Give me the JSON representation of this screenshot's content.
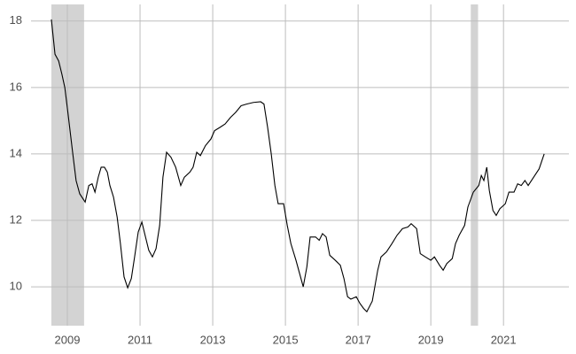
{
  "chart_data": {
    "type": "line",
    "x": [
      2008.56,
      2008.66,
      2008.76,
      2008.85,
      2008.93,
      2009.02,
      2009.15,
      2009.24,
      2009.34,
      2009.49,
      2009.59,
      2009.68,
      2009.76,
      2009.85,
      2009.93,
      2010.02,
      2010.1,
      2010.17,
      2010.27,
      2010.37,
      2010.46,
      2010.56,
      2010.66,
      2010.76,
      2010.85,
      2010.95,
      2011.05,
      2011.15,
      2011.24,
      2011.34,
      2011.44,
      2011.54,
      2011.63,
      2011.73,
      2011.85,
      2011.98,
      2012.12,
      2012.22,
      2012.37,
      2012.46,
      2012.56,
      2012.66,
      2012.8,
      2012.95,
      2013.05,
      2013.2,
      2013.34,
      2013.49,
      2013.63,
      2013.78,
      2013.93,
      2014.12,
      2014.32,
      2014.41,
      2014.51,
      2014.61,
      2014.71,
      2014.8,
      2014.95,
      2015.05,
      2015.15,
      2015.29,
      2015.39,
      2015.49,
      2015.59,
      2015.68,
      2015.83,
      2015.93,
      2016.02,
      2016.12,
      2016.22,
      2016.37,
      2016.51,
      2016.61,
      2016.71,
      2016.8,
      2016.95,
      2017.05,
      2017.15,
      2017.24,
      2017.39,
      2017.54,
      2017.63,
      2017.78,
      2017.93,
      2018.07,
      2018.22,
      2018.37,
      2018.46,
      2018.61,
      2018.71,
      2018.85,
      2019.0,
      2019.1,
      2019.24,
      2019.34,
      2019.44,
      2019.59,
      2019.68,
      2019.78,
      2019.93,
      2020.02,
      2020.17,
      2020.32,
      2020.39,
      2020.46,
      2020.54,
      2020.61,
      2020.71,
      2020.8,
      2020.9,
      2021.05,
      2021.15,
      2021.29,
      2021.39,
      2021.49,
      2021.59,
      2021.68,
      2021.83,
      2021.98,
      2022.12
    ],
    "values": [
      18.05,
      17.0,
      16.8,
      16.4,
      16.0,
      15.2,
      14.0,
      13.2,
      12.8,
      12.55,
      13.05,
      13.1,
      12.85,
      13.3,
      13.6,
      13.6,
      13.45,
      13.05,
      12.7,
      12.1,
      11.3,
      10.3,
      9.97,
      10.25,
      10.9,
      11.65,
      11.95,
      11.5,
      11.1,
      10.9,
      11.15,
      11.85,
      13.3,
      14.05,
      13.9,
      13.6,
      13.05,
      13.3,
      13.45,
      13.6,
      14.05,
      13.95,
      14.25,
      14.45,
      14.7,
      14.8,
      14.9,
      15.1,
      15.25,
      15.45,
      15.5,
      15.55,
      15.57,
      15.5,
      14.8,
      14.0,
      13.05,
      12.5,
      12.5,
      11.85,
      11.3,
      10.8,
      10.4,
      10.0,
      10.6,
      11.5,
      11.5,
      11.4,
      11.6,
      11.5,
      10.95,
      10.8,
      10.65,
      10.25,
      9.7,
      9.63,
      9.7,
      9.5,
      9.35,
      9.25,
      9.57,
      10.5,
      10.9,
      11.05,
      11.3,
      11.55,
      11.75,
      11.8,
      11.9,
      11.75,
      11.0,
      10.9,
      10.8,
      10.9,
      10.65,
      10.5,
      10.7,
      10.85,
      11.3,
      11.55,
      11.85,
      12.4,
      12.85,
      13.05,
      13.35,
      13.2,
      13.6,
      12.9,
      12.3,
      12.15,
      12.35,
      12.5,
      12.85,
      12.85,
      13.1,
      13.05,
      13.2,
      13.05,
      13.3,
      13.55,
      14.0
    ],
    "color": "#000000",
    "shaded_regions": [
      {
        "start": 2008.56,
        "end": 2009.46,
        "color": "#d3d3d3"
      },
      {
        "start": 2020.1,
        "end": 2020.3,
        "color": "#d3d3d3"
      }
    ],
    "xlim": [
      2008,
      2022.8
    ],
    "ylim": [
      8.83,
      18.5
    ],
    "xticks": [
      2009,
      2011,
      2013,
      2015,
      2017,
      2019,
      2021
    ],
    "yticks": [
      10,
      12,
      14,
      16,
      18
    ],
    "grid": true
  }
}
